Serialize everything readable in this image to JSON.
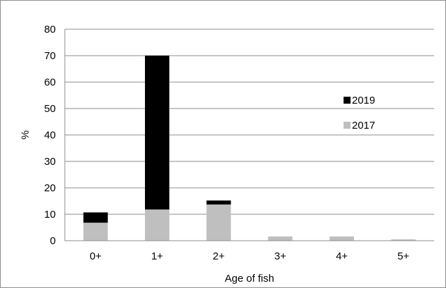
{
  "chart_data": {
    "type": "bar",
    "stacked": true,
    "categories": [
      "0+",
      "1+",
      "2+",
      "3+",
      "4+",
      "5+"
    ],
    "series": [
      {
        "name": "2017",
        "color": "#bfbfbf",
        "values": [
          6.8,
          11.8,
          13.7,
          1.6,
          1.6,
          0.5
        ]
      },
      {
        "name": "2019",
        "color": "#000000",
        "values": [
          3.9,
          58.2,
          1.5,
          0,
          0,
          0
        ]
      }
    ],
    "xlabel": "Age of fish",
    "ylabel": "%",
    "ylim": [
      0,
      80
    ],
    "yticks": [
      "0",
      "10",
      "20",
      "30",
      "40",
      "50",
      "60",
      "70",
      "80"
    ],
    "grid": true,
    "legend_position": "right"
  }
}
